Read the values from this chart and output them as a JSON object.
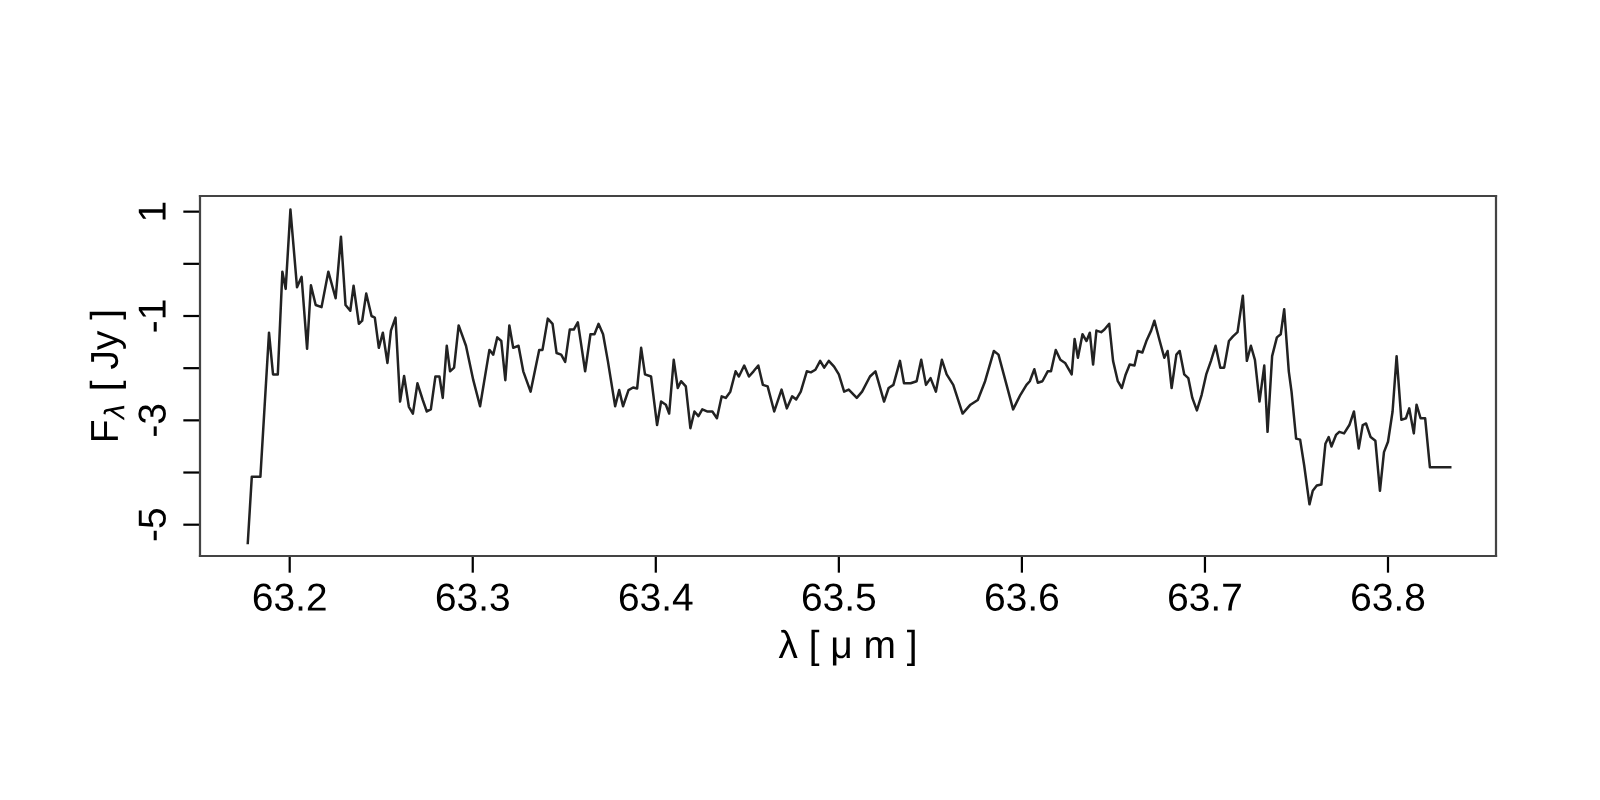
{
  "chart_data": {
    "type": "line",
    "xlabel": "λ [ μ m ]",
    "ylabel": "F$_{λ}$ [ Jy ]",
    "xlim": [
      63.151,
      63.859
    ],
    "ylim": [
      -5.6,
      1.3
    ],
    "xticks": [
      63.2,
      63.3,
      63.4,
      63.5,
      63.6,
      63.7,
      63.8
    ],
    "yticks": [
      1,
      {
        "value": 0,
        "label": null
      },
      -1,
      {
        "value": -2,
        "label": null
      },
      -3,
      {
        "value": -4,
        "label": null
      },
      -5
    ],
    "grid": false,
    "marker": "none",
    "line_style": "solid",
    "series": [
      {
        "color": "#222222",
        "x": [
          63.1771,
          63.1793,
          63.184,
          63.1887,
          63.1909,
          63.1935,
          63.196,
          63.1978,
          63.2004,
          63.204,
          63.2065,
          63.2095,
          63.2116,
          63.2142,
          63.2174,
          63.2211,
          63.2251,
          63.228,
          63.2305,
          63.2331,
          63.2349,
          63.2378,
          63.2396,
          63.2418,
          63.2447,
          63.2465,
          63.2487,
          63.2509,
          63.2534,
          63.2553,
          63.2578,
          63.2603,
          63.2625,
          63.2651,
          63.2673,
          63.2698,
          63.2727,
          63.2749,
          63.2771,
          63.2796,
          63.2818,
          63.2836,
          63.2858,
          63.2876,
          63.2898,
          63.2923,
          63.2963,
          63.3003,
          63.304,
          63.3091,
          63.3112,
          63.3134,
          63.3156,
          63.3178,
          63.32,
          63.3221,
          63.325,
          63.3276,
          63.3316,
          63.3363,
          63.3381,
          63.341,
          63.3436,
          63.3458,
          63.3483,
          63.3505,
          63.353,
          63.3552,
          63.3574,
          63.3592,
          63.3614,
          63.3643,
          63.3665,
          63.3687,
          63.3712,
          63.3738,
          63.3778,
          63.38,
          63.3821,
          63.3851,
          63.3876,
          63.3898,
          63.392,
          63.3941,
          63.3974,
          63.4007,
          63.4029,
          63.4055,
          63.4073,
          63.4098,
          63.412,
          63.4138,
          63.4164,
          63.4189,
          63.4211,
          63.4233,
          63.4254,
          63.428,
          63.4309,
          63.4334,
          63.436,
          63.4382,
          63.4407,
          63.4436,
          63.4454,
          63.4483,
          63.4509,
          63.4534,
          63.456,
          63.4585,
          63.4611,
          63.4647,
          63.4687,
          63.4716,
          63.4745,
          63.4767,
          63.4792,
          63.4825,
          63.4847,
          63.4872,
          63.4898,
          63.492,
          63.4945,
          63.4974,
          63.5,
          63.5029,
          63.5054,
          63.5098,
          63.5127,
          63.517,
          63.52,
          63.5247,
          63.5272,
          63.5298,
          63.5334,
          63.5356,
          63.5392,
          63.5425,
          63.545,
          63.5476,
          63.5501,
          63.553,
          63.5563,
          63.5589,
          63.5625,
          63.5676,
          63.5719,
          63.5759,
          63.5799,
          63.5847,
          63.5872,
          63.5952,
          63.5992,
          63.6025,
          63.6043,
          63.6068,
          63.6087,
          63.6112,
          63.6141,
          63.6159,
          63.6185,
          63.621,
          63.6236,
          63.6272,
          63.6288,
          63.6306,
          63.6331,
          63.6353,
          63.6371,
          63.6389,
          63.6407,
          63.6433,
          63.6451,
          63.6477,
          63.6498,
          63.6524,
          63.6546,
          63.6567,
          63.6589,
          63.6615,
          63.6633,
          63.6658,
          63.668,
          63.6706,
          63.6724,
          63.6753,
          63.6778,
          63.6796,
          63.6818,
          63.6844,
          63.6862,
          63.6887,
          63.6909,
          63.6931,
          63.6956,
          63.6982,
          63.7007,
          63.7033,
          63.7058,
          63.7084,
          63.7105,
          63.7131,
          63.7153,
          63.7178,
          63.7207,
          63.7229,
          63.7251,
          63.7273,
          63.7298,
          63.7324,
          63.7342,
          63.7367,
          63.7393,
          63.7414,
          63.7433,
          63.7458,
          63.7473,
          63.7498,
          63.752,
          63.7542,
          63.7571,
          63.7589,
          63.7611,
          63.7636,
          63.7658,
          63.7676,
          63.7691,
          63.7716,
          63.7734,
          63.776,
          63.7789,
          63.7814,
          63.784,
          63.7862,
          63.788,
          63.7905,
          63.7931,
          63.7956,
          63.7978,
          63.8,
          63.8025,
          63.8047,
          63.8073,
          63.8098,
          63.8116,
          63.8141,
          63.8156,
          63.8178,
          63.8203,
          63.8229,
          63.834
        ],
        "values": [
          -5.35,
          -4.08,
          -4.08,
          -1.32,
          -2.12,
          -2.12,
          -0.15,
          -0.48,
          1.04,
          -0.45,
          -0.25,
          -1.63,
          -0.41,
          -0.79,
          -0.83,
          -0.15,
          -0.66,
          0.52,
          -0.79,
          -0.9,
          -0.42,
          -1.15,
          -1.09,
          -0.57,
          -1.0,
          -1.03,
          -1.61,
          -1.32,
          -1.9,
          -1.28,
          -1.03,
          -2.64,
          -2.15,
          -2.74,
          -2.87,
          -2.29,
          -2.61,
          -2.83,
          -2.79,
          -2.16,
          -2.16,
          -2.57,
          -1.57,
          -2.06,
          -1.99,
          -1.18,
          -1.57,
          -2.23,
          -2.73,
          -1.65,
          -1.74,
          -1.41,
          -1.48,
          -2.23,
          -1.18,
          -1.61,
          -1.57,
          -2.06,
          -2.45,
          -1.65,
          -1.65,
          -1.05,
          -1.15,
          -1.71,
          -1.74,
          -1.88,
          -1.26,
          -1.26,
          -1.12,
          -1.54,
          -2.06,
          -1.35,
          -1.35,
          -1.15,
          -1.35,
          -1.86,
          -2.73,
          -2.42,
          -2.73,
          -2.42,
          -2.37,
          -2.39,
          -1.61,
          -2.12,
          -2.16,
          -3.09,
          -2.64,
          -2.7,
          -2.87,
          -1.84,
          -2.38,
          -2.25,
          -2.35,
          -3.15,
          -2.83,
          -2.92,
          -2.79,
          -2.83,
          -2.83,
          -2.96,
          -2.54,
          -2.57,
          -2.45,
          -2.06,
          -2.16,
          -1.95,
          -2.16,
          -2.06,
          -1.95,
          -2.32,
          -2.35,
          -2.83,
          -2.41,
          -2.77,
          -2.54,
          -2.6,
          -2.45,
          -2.06,
          -2.08,
          -2.03,
          -1.86,
          -1.99,
          -1.86,
          -1.97,
          -2.12,
          -2.45,
          -2.41,
          -2.57,
          -2.45,
          -2.16,
          -2.06,
          -2.64,
          -2.38,
          -2.32,
          -1.86,
          -2.29,
          -2.29,
          -2.25,
          -1.84,
          -2.32,
          -2.19,
          -2.45,
          -1.84,
          -2.12,
          -2.32,
          -2.87,
          -2.7,
          -2.61,
          -2.25,
          -1.67,
          -1.74,
          -2.79,
          -2.51,
          -2.32,
          -2.25,
          -2.02,
          -2.28,
          -2.25,
          -2.06,
          -2.06,
          -1.65,
          -1.84,
          -1.9,
          -2.12,
          -1.44,
          -1.8,
          -1.35,
          -1.48,
          -1.32,
          -1.93,
          -1.28,
          -1.31,
          -1.26,
          -1.15,
          -1.86,
          -2.25,
          -2.38,
          -2.12,
          -1.93,
          -1.95,
          -1.67,
          -1.7,
          -1.48,
          -1.28,
          -1.09,
          -1.48,
          -1.8,
          -1.67,
          -2.38,
          -1.74,
          -1.67,
          -2.12,
          -2.19,
          -2.57,
          -2.81,
          -2.51,
          -2.12,
          -1.86,
          -1.57,
          -1.99,
          -1.99,
          -1.48,
          -1.39,
          -1.31,
          -0.61,
          -1.86,
          -1.57,
          -1.84,
          -2.64,
          -1.95,
          -3.22,
          -1.77,
          -1.41,
          -1.35,
          -0.87,
          -2.06,
          -2.45,
          -3.35,
          -3.37,
          -3.86,
          -4.61,
          -4.35,
          -4.25,
          -4.23,
          -3.45,
          -3.32,
          -3.5,
          -3.28,
          -3.22,
          -3.25,
          -3.09,
          -2.83,
          -3.54,
          -3.09,
          -3.06,
          -3.32,
          -3.39,
          -4.35,
          -3.61,
          -3.41,
          -2.83,
          -1.77,
          -2.99,
          -2.96,
          -2.77,
          -3.25,
          -2.7,
          -2.96,
          -2.96,
          -3.9,
          -3.9
        ]
      }
    ]
  }
}
